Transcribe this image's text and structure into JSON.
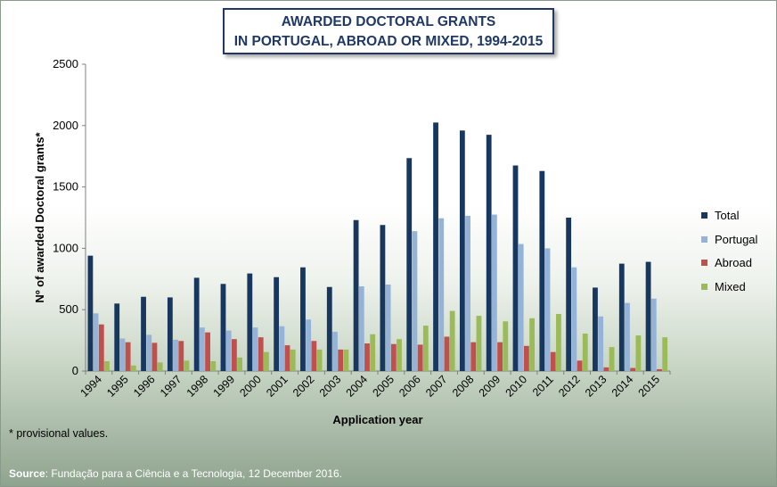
{
  "chart_data": {
    "type": "bar",
    "title_line1": "AWARDED DOCTORAL GRANTS",
    "title_line2": "IN PORTUGAL, ABROAD OR MIXED, 1994-2015",
    "xlabel": "Application year",
    "ylabel": "Nº of awarded Doctoral grants*",
    "ylim": [
      0,
      2500
    ],
    "yticks": [
      0,
      500,
      1000,
      1500,
      2000,
      2500
    ],
    "categories": [
      "1994",
      "1995",
      "1996",
      "1997",
      "1998",
      "1999",
      "2000",
      "2001",
      "2002",
      "2003",
      "2004",
      "2005",
      "2006",
      "2007",
      "2008",
      "2009",
      "2010",
      "2011",
      "2012",
      "2013",
      "2014",
      "2015"
    ],
    "series": [
      {
        "name": "Total",
        "color": "#17375e",
        "values": [
          940,
          550,
          605,
          600,
          760,
          710,
          795,
          765,
          845,
          685,
          1230,
          1190,
          1735,
          2025,
          1960,
          1925,
          1675,
          1630,
          1250,
          680,
          875,
          890
        ]
      },
      {
        "name": "Portugal",
        "color": "#95b3d7",
        "values": [
          470,
          265,
          295,
          255,
          355,
          330,
          355,
          365,
          420,
          320,
          690,
          705,
          1140,
          1245,
          1265,
          1275,
          1035,
          1000,
          845,
          445,
          555,
          590
        ]
      },
      {
        "name": "Abroad",
        "color": "#c0504d",
        "values": [
          380,
          235,
          230,
          245,
          315,
          260,
          275,
          210,
          245,
          175,
          225,
          220,
          215,
          280,
          235,
          235,
          205,
          155,
          85,
          30,
          25,
          15
        ]
      },
      {
        "name": "Mixed",
        "color": "#9bbb59",
        "values": [
          80,
          45,
          70,
          85,
          80,
          110,
          155,
          175,
          175,
          175,
          300,
          260,
          370,
          490,
          450,
          405,
          430,
          465,
          305,
          195,
          290,
          275
        ]
      }
    ],
    "grid": false,
    "legend_position": "right"
  },
  "footnote": "* provisional values.",
  "source": {
    "label": "Source",
    "text": ": Fundação para a Ciência e a Tecnologia, 12 December 2016."
  }
}
